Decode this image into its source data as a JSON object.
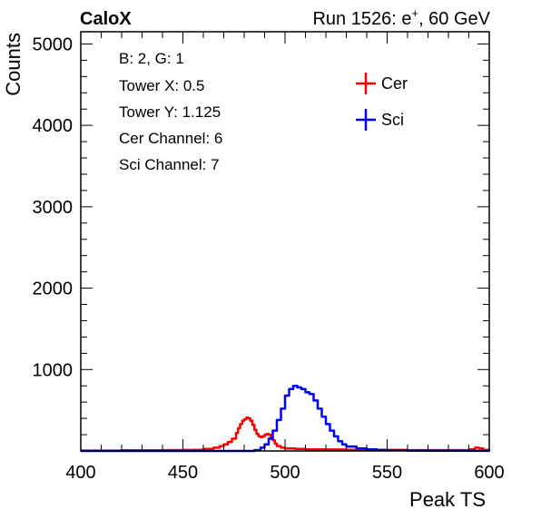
{
  "header": {
    "experiment": "CaloX",
    "run_prefix": "Run 1526: e",
    "run_charge": "+",
    "run_suffix": ", 60 GeV"
  },
  "info_lines": [
    "B: 2, G: 1",
    "Tower X: 0.5",
    "Tower Y: 1.125",
    "Cer Channel: 6",
    "Sci Channel: 7"
  ],
  "chart_data": {
    "type": "line",
    "xlabel": "Peak TS",
    "ylabel": "Counts",
    "xlim": [
      400,
      600
    ],
    "ylim": [
      0,
      5150
    ],
    "x_ticks": [
      400,
      450,
      500,
      550,
      600
    ],
    "y_ticks": [
      1000,
      2000,
      3000,
      4000,
      5000
    ],
    "grid": false,
    "legend_position": "top-right",
    "series": [
      {
        "name": "Cer",
        "color": "#ff0000",
        "x": [
          400,
          410,
          420,
          430,
          440,
          450,
          455,
          460,
          465,
          468,
          470,
          472,
          474,
          476,
          477,
          478,
          479,
          480,
          481,
          482,
          483,
          484,
          485,
          486,
          487,
          488,
          489,
          490,
          491,
          492,
          493,
          494,
          495,
          496,
          498,
          500,
          505,
          510,
          520,
          530,
          540,
          550,
          560,
          570,
          580,
          590,
          593,
          595,
          597,
          600
        ],
        "y": [
          5,
          5,
          8,
          8,
          10,
          12,
          15,
          25,
          40,
          60,
          80,
          110,
          150,
          220,
          280,
          330,
          370,
          390,
          410,
          400,
          370,
          320,
          260,
          210,
          180,
          170,
          180,
          200,
          210,
          200,
          170,
          130,
          90,
          60,
          40,
          30,
          25,
          20,
          18,
          15,
          15,
          12,
          10,
          10,
          10,
          20,
          40,
          30,
          15,
          10
        ]
      },
      {
        "name": "Sci",
        "color": "#0000ff",
        "x": [
          400,
          450,
          470,
          480,
          485,
          488,
          490,
          492,
          494,
          496,
          498,
          500,
          502,
          504,
          506,
          508,
          510,
          512,
          514,
          516,
          518,
          520,
          522,
          524,
          526,
          528,
          530,
          535,
          540,
          545,
          550,
          560,
          570,
          580,
          590,
          600
        ],
        "y": [
          0,
          0,
          0,
          0,
          10,
          40,
          80,
          150,
          250,
          380,
          520,
          680,
          760,
          800,
          780,
          760,
          720,
          700,
          620,
          520,
          420,
          330,
          250,
          180,
          120,
          80,
          55,
          30,
          20,
          12,
          8,
          5,
          3,
          2,
          1,
          0
        ]
      }
    ]
  }
}
